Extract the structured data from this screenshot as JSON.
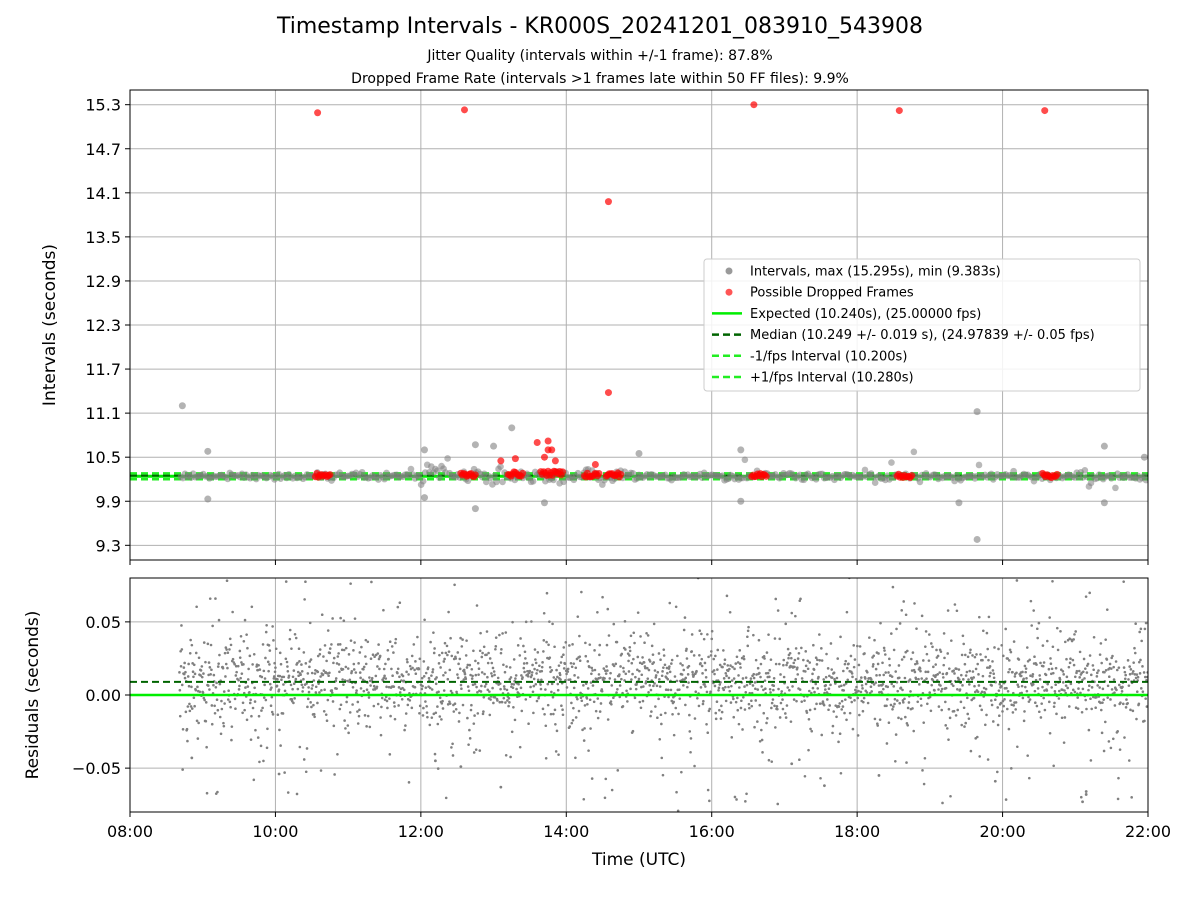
{
  "figure": {
    "title": "Timestamp Intervals - KR000S_20241201_083910_543908",
    "subtitle_1": "Jitter Quality (intervals within +/-1 frame): 87.8%",
    "subtitle_2": "Dropped Frame Rate (intervals >1 frames late within 50 FF files): 9.9%"
  },
  "colors": {
    "intervals": "#808080",
    "dropped": "#ff0000",
    "expected": "#00ee00",
    "median": "#006400",
    "fps_bounds": "#22ee22",
    "grid": "#b0b0b0"
  },
  "chart_data": [
    {
      "id": "intervals",
      "type": "scatter",
      "xlabel": "",
      "ylabel": "Intervals (seconds)",
      "x_axis": "Time (UTC), hours",
      "xlim": [
        8,
        22
      ],
      "ylim": [
        9.1,
        15.5
      ],
      "yticks": [
        9.3,
        9.9,
        10.5,
        11.1,
        11.7,
        12.3,
        12.9,
        13.5,
        14.1,
        14.7,
        15.3
      ],
      "ytick_labels": [
        "9.3",
        "9.9",
        "10.5",
        "11.1",
        "11.7",
        "12.3",
        "12.9",
        "13.5",
        "14.1",
        "14.7",
        "15.3"
      ],
      "grid": true,
      "legend_position": "right",
      "legend": [
        {
          "label": "Intervals, max (15.295s), min (9.383s)",
          "marker": "dot",
          "color": "#9a9a9a"
        },
        {
          "label": "Possible Dropped Frames",
          "marker": "dot",
          "color": "#ff5555"
        },
        {
          "label": "Expected (10.240s), (25.00000 fps)",
          "marker": "solid",
          "color": "#00ee00"
        },
        {
          "label": "Median (10.249 +/- 0.019 s), (24.97839 +/- 0.05 fps)",
          "marker": "dashed",
          "color": "#006400"
        },
        {
          "label": "-1/fps Interval (10.200s)",
          "marker": "dashed",
          "color": "#22ee22"
        },
        {
          "label": "+1/fps Interval (10.280s)",
          "marker": "dashed",
          "color": "#22ee22"
        }
      ],
      "lines": {
        "expected": 10.24,
        "median": 10.249,
        "minus_fps": 10.2,
        "plus_fps": 10.28
      },
      "outliers": [
        {
          "x": 8.72,
          "y": 11.2
        },
        {
          "x": 9.07,
          "y": 10.58
        },
        {
          "x": 9.07,
          "y": 9.93
        },
        {
          "x": 12.05,
          "y": 10.6
        },
        {
          "x": 12.05,
          "y": 9.95
        },
        {
          "x": 12.75,
          "y": 10.67
        },
        {
          "x": 12.75,
          "y": 9.8
        },
        {
          "x": 13.0,
          "y": 10.65
        },
        {
          "x": 13.25,
          "y": 10.9
        },
        {
          "x": 13.7,
          "y": 9.88
        },
        {
          "x": 15.0,
          "y": 10.55
        },
        {
          "x": 16.4,
          "y": 9.9
        },
        {
          "x": 16.4,
          "y": 10.6
        },
        {
          "x": 19.4,
          "y": 9.88
        },
        {
          "x": 19.65,
          "y": 11.12
        },
        {
          "x": 19.65,
          "y": 9.38
        },
        {
          "x": 21.4,
          "y": 10.65
        },
        {
          "x": 21.4,
          "y": 9.88
        },
        {
          "x": 21.95,
          "y": 10.5
        }
      ],
      "dropped_frames_high": [
        {
          "x": 10.58,
          "y": 15.19
        },
        {
          "x": 12.6,
          "y": 15.23
        },
        {
          "x": 14.58,
          "y": 13.98
        },
        {
          "x": 14.58,
          "y": 11.38
        },
        {
          "x": 16.58,
          "y": 15.3
        },
        {
          "x": 18.58,
          "y": 15.22
        },
        {
          "x": 20.58,
          "y": 15.22
        }
      ],
      "dropped_frames_clusters": [
        {
          "x_start": 10.55,
          "x_end": 10.75,
          "y": 10.25
        },
        {
          "x_start": 12.55,
          "x_end": 12.75,
          "y": 10.26
        },
        {
          "x_start": 13.2,
          "x_end": 13.4,
          "y": 10.27
        },
        {
          "x_start": 13.65,
          "x_end": 13.95,
          "y": 10.28
        },
        {
          "x_start": 14.25,
          "x_end": 14.45,
          "y": 10.26
        },
        {
          "x_start": 14.55,
          "x_end": 14.75,
          "y": 10.26
        },
        {
          "x_start": 16.55,
          "x_end": 16.75,
          "y": 10.25
        },
        {
          "x_start": 18.55,
          "x_end": 18.75,
          "y": 10.25
        },
        {
          "x_start": 20.55,
          "x_end": 20.75,
          "y": 10.25
        }
      ],
      "dropped_frames_scattered": [
        {
          "x": 13.6,
          "y": 10.7
        },
        {
          "x": 13.75,
          "y": 10.72
        },
        {
          "x": 13.8,
          "y": 10.6
        },
        {
          "x": 13.75,
          "y": 10.6
        },
        {
          "x": 13.7,
          "y": 10.5
        },
        {
          "x": 13.85,
          "y": 10.45
        },
        {
          "x": 13.3,
          "y": 10.48
        },
        {
          "x": 13.1,
          "y": 10.45
        },
        {
          "x": 14.4,
          "y": 10.4
        }
      ]
    },
    {
      "id": "residuals",
      "type": "scatter",
      "xlabel": "Time (UTC)",
      "ylabel": "Residuals (seconds)",
      "xlim": [
        8,
        22
      ],
      "ylim": [
        -0.08,
        0.08
      ],
      "xticks": [
        8,
        10,
        12,
        14,
        16,
        18,
        20,
        22
      ],
      "xtick_labels": [
        "08:00",
        "10:00",
        "12:00",
        "14:00",
        "16:00",
        "18:00",
        "20:00",
        "22:00"
      ],
      "yticks": [
        -0.05,
        0.0,
        0.05
      ],
      "ytick_labels": [
        "−0.05",
        "0.00",
        "0.05"
      ],
      "grid": true,
      "lines": {
        "zero": 0.0,
        "median": 0.009
      },
      "notable_points": [
        {
          "x": 8.85,
          "y": -0.043
        },
        {
          "x": 10.05,
          "y": -0.054
        },
        {
          "x": 12.2,
          "y": -0.045
        },
        {
          "x": 12.55,
          "y": -0.049
        },
        {
          "x": 13.1,
          "y": -0.063
        },
        {
          "x": 17.1,
          "y": -0.047
        },
        {
          "x": 17.55,
          "y": -0.062
        },
        {
          "x": 18.3,
          "y": -0.055
        },
        {
          "x": 19.9,
          "y": -0.059
        },
        {
          "x": 21.1,
          "y": -0.073
        },
        {
          "x": 21.15,
          "y": -0.068
        },
        {
          "x": 21.15,
          "y": -0.066
        }
      ]
    }
  ]
}
